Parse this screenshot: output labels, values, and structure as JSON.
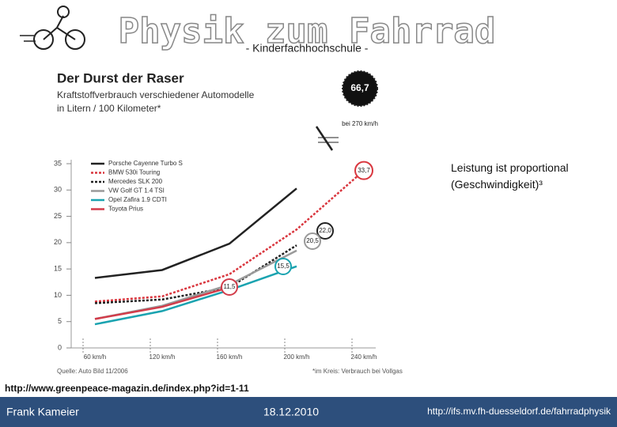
{
  "slide": {
    "title": "Physik zum Fahrrad",
    "subtitle": "- Kinderfachhochschule -",
    "note": "Leistung ist proportional (Geschwindigkeit)³",
    "source_url": "http://www.greenpeace-magazin.de/index.php?id=1-11",
    "footer": {
      "author": "Frank Kameier",
      "date": "18.12.2010",
      "url": "http://ifs.mv.fh-duesseldorf.de/fahrradphysik"
    }
  },
  "chart_data": {
    "type": "line",
    "title": "Der Durst der Raser",
    "subtitle": "Kraftstoffverbrauch verschiedener Automodelle in Litern / 100 Kilometer*",
    "categories": [
      "60 km/h",
      "120 km/h",
      "160 km/h",
      "200 km/h",
      "240 km/h"
    ],
    "series": [
      {
        "name": "Porsche Cayenne Turbo S",
        "color": "#222222",
        "dash": false,
        "values": [
          13.3,
          14.8,
          19.8,
          30.3,
          null
        ]
      },
      {
        "name": "BMW 530i Touring",
        "color": "#d9363e",
        "dash": true,
        "values": [
          8.8,
          9.8,
          14.0,
          22.5,
          33.7
        ],
        "value_labels": [
          null,
          null,
          null,
          null,
          "33,7"
        ]
      },
      {
        "name": "Mercedes SLK 200",
        "color": "#222222",
        "dash": true,
        "values": [
          8.5,
          9.2,
          11.5,
          19.5,
          null
        ]
      },
      {
        "name": "VW Golf GT 1.4 TSI",
        "color": "#9a9a9a",
        "dash": false,
        "values": [
          5.5,
          8.0,
          12.0,
          18.5,
          null
        ]
      },
      {
        "name": "Opel Zafira 1.9 CDTI",
        "color": "#1aa3b0",
        "dash": false,
        "values": [
          4.5,
          7.0,
          11.0,
          15.5,
          null
        ]
      },
      {
        "name": "Toyota Prius",
        "color": "#d23c4a",
        "dash": false,
        "values": [
          5.5,
          7.8,
          11.5,
          null,
          null
        ]
      }
    ],
    "annotations": [
      "66,7",
      "bei 270 km/h",
      "22,0",
      "20,5",
      "15,5",
      "11,5"
    ],
    "source": "Quelle: Auto Bild 11/2006",
    "footnote": "*im Kreis: Verbrauch bei Vollgas",
    "ylim": [
      0,
      35
    ],
    "yticks": [
      0,
      5,
      10,
      15,
      20,
      25,
      30,
      35
    ],
    "grid": false
  }
}
